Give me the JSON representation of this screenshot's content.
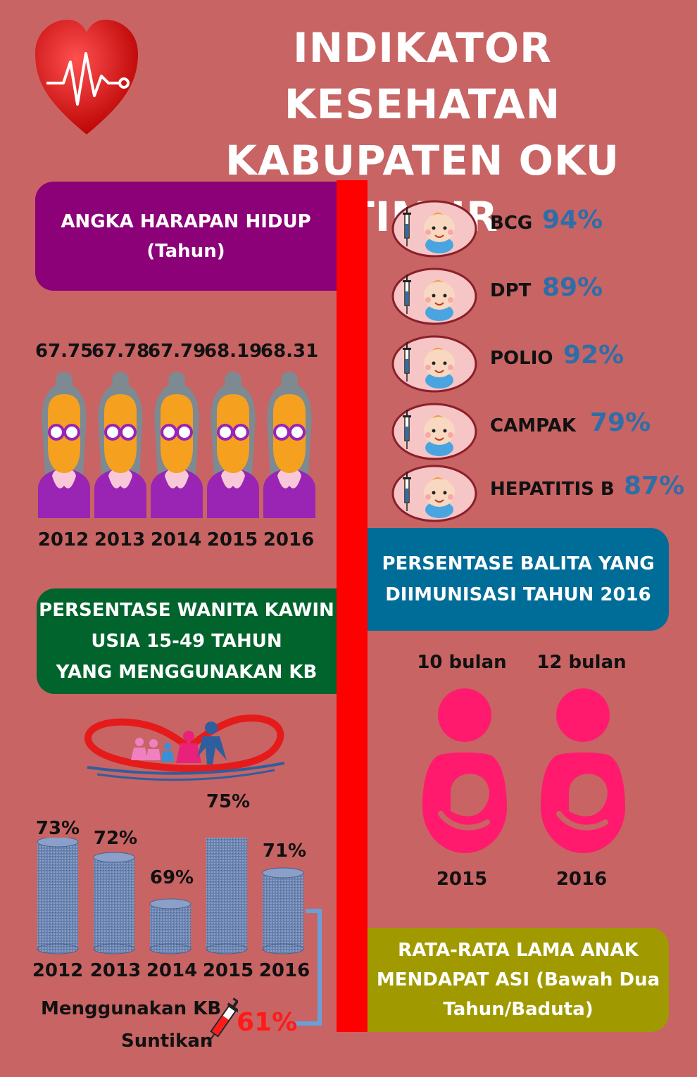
{
  "title": {
    "line1": "INDIKATOR KESEHATAN",
    "line2": "KABUPATEN OKU TIMUR"
  },
  "life_expectancy": {
    "box_line1": "ANGKA HARAPAN HIDUP",
    "box_line2": "(Tahun)",
    "values": [
      "67.75",
      "67.78",
      "67.79",
      "68.19",
      "68.31"
    ],
    "years": [
      "2012",
      "2013",
      "2014",
      "2015",
      "2016"
    ]
  },
  "immunization": {
    "items": [
      {
        "label": "BCG",
        "value": "94%"
      },
      {
        "label": "DPT",
        "value": "89%"
      },
      {
        "label": "POLIO",
        "value": "92%"
      },
      {
        "label": "CAMPAK",
        "value": "79%"
      },
      {
        "label": "HEPATITIS B",
        "value": "87%"
      }
    ],
    "box_line1": "PERSENTASE BALITA YANG",
    "box_line2": "DIIMUNISASI TAHUN 2016"
  },
  "kb": {
    "box_line1": "PERSENTASE WANITA KAWIN",
    "box_line2": "USIA 15-49 TAHUN",
    "box_line3": "YANG MENGGUNAKAN KB",
    "labels": [
      "73%",
      "72%",
      "69%",
      "75%",
      "71%"
    ],
    "values": [
      73,
      72,
      69,
      75,
      71
    ],
    "years": [
      "2012",
      "2013",
      "2014",
      "2015",
      "2016"
    ],
    "injection_label_1": "Menggunakan KB",
    "injection_label_2": "Suntikan",
    "injection_value": "61%"
  },
  "breastfeeding": {
    "durations": [
      "10 bulan",
      "12 bulan"
    ],
    "years": [
      "2015",
      "2016"
    ],
    "box_line1": "RATA-RATA LAMA ANAK",
    "box_line2": "MENDAPAT ASI (Bawah Dua",
    "box_line3": "Tahun/Baduta)"
  },
  "colors": {
    "background": "#c86464",
    "divider": "#ff0000",
    "life_box": "#8c0078",
    "kb_box": "#00642c",
    "balita_box": "#006c98",
    "asi_box": "#a09a00",
    "percent_text": "#2e6ea8",
    "mother_icon": "#ff1a6e",
    "cylinder": "#6a84b0"
  },
  "icons": [
    "heart-pulse-icon",
    "grandmother-icon",
    "baby-syringe-icon",
    "family-heart-icon",
    "cylinder-icon",
    "syringe-icon",
    "mother-baby-icon"
  ]
}
